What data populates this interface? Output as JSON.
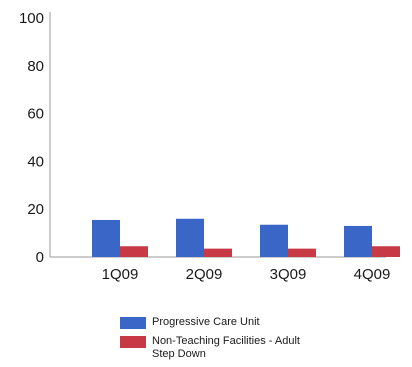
{
  "chart_data": {
    "type": "bar",
    "categories": [
      "1Q09",
      "2Q09",
      "3Q09",
      "4Q09"
    ],
    "series": [
      {
        "name": "Progressive Care Unit",
        "values": [
          15.5,
          16,
          13.5,
          13
        ],
        "color": "#3a66c8"
      },
      {
        "name": "Non-Teaching Facilities - Adult Step Down",
        "values": [
          4.5,
          3.5,
          3.5,
          4.5
        ],
        "color": "#c73a45"
      }
    ],
    "yticks": [
      0,
      20,
      40,
      60,
      80,
      100
    ],
    "ylim": [
      0,
      100
    ],
    "grid": false,
    "legend_position": "bottom"
  }
}
